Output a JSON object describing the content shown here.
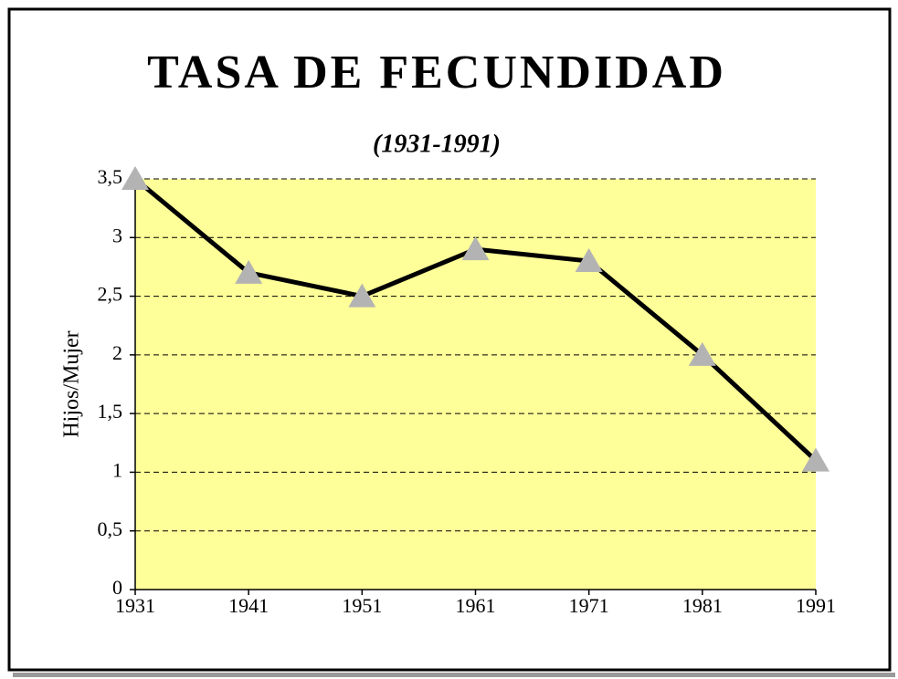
{
  "chart_data": {
    "type": "line",
    "title": "TASA DE FECUNDIDAD",
    "subtitle": "(1931-1991)",
    "y_label": "Hijos/Mujer",
    "categories": [
      "1931",
      "1941",
      "1951",
      "1961",
      "1971",
      "1981",
      "1991"
    ],
    "series": [
      {
        "name": "Tasa de fecundidad",
        "color": "#000000",
        "marker_color": "#b3b3b3",
        "values": [
          3.5,
          2.7,
          2.5,
          2.9,
          2.8,
          2.0,
          1.1
        ]
      }
    ],
    "ylim": [
      0,
      3.5
    ],
    "yticks": [
      0,
      {
        "value": 0.5,
        "label": "0,5"
      },
      1,
      {
        "value": 1.5,
        "label": "1,5"
      },
      2,
      {
        "value": 2.5,
        "label": "2,5"
      },
      3,
      {
        "value": 3.5,
        "label": "3,5"
      }
    ],
    "grid": true,
    "plot_color": "#ffff99"
  }
}
